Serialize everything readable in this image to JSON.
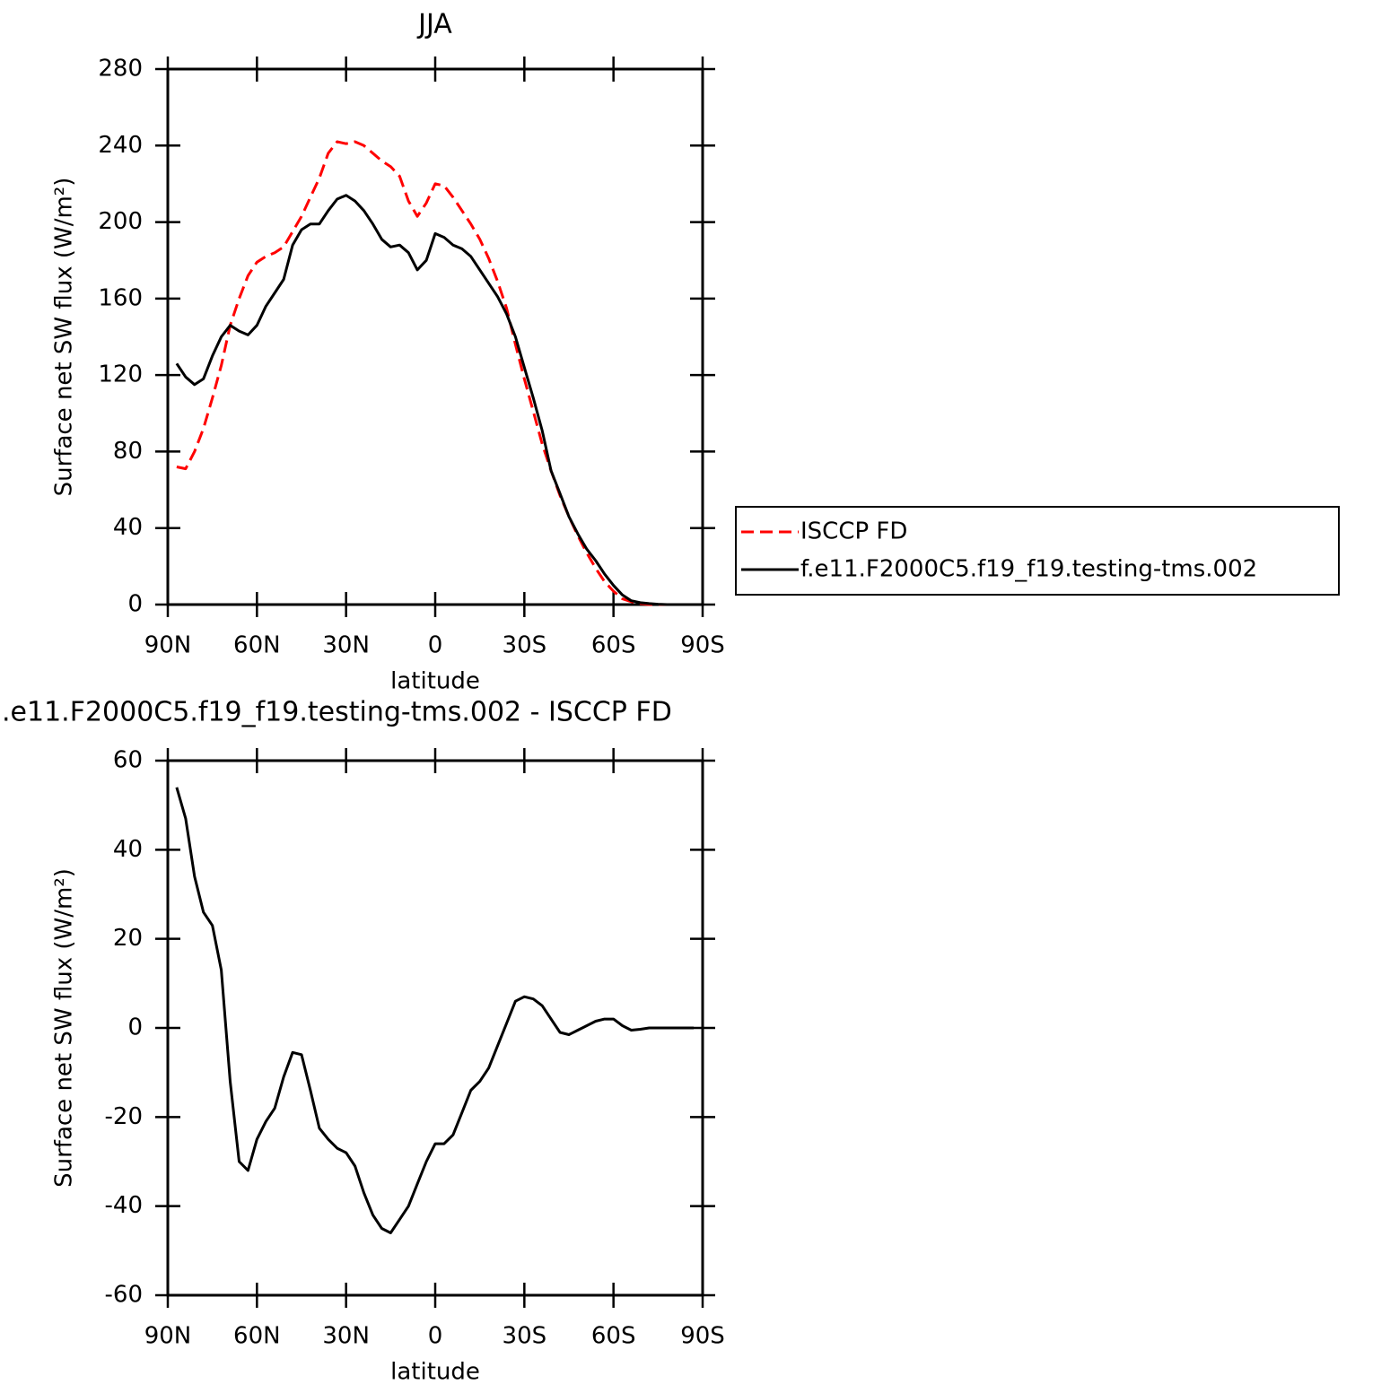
{
  "chart_data": [
    {
      "type": "line",
      "title": "JJA",
      "xlabel": "latitude",
      "ylabel": "Surface net SW flux (W/m²)",
      "x": [
        87,
        84,
        81,
        78,
        75,
        72,
        69,
        66,
        63,
        60,
        57,
        54,
        51,
        48,
        45,
        42,
        39,
        36,
        33,
        30,
        27,
        24,
        21,
        18,
        15,
        12,
        9,
        6,
        3,
        0,
        -3,
        -6,
        -9,
        -12,
        -15,
        -18,
        -21,
        -24,
        -27,
        -30,
        -33,
        -36,
        -39,
        -42,
        -45,
        -48,
        -51,
        -54,
        -57,
        -60,
        -63,
        -66,
        -69,
        -72,
        -75,
        -78,
        -81,
        -84,
        -87
      ],
      "series": [
        {
          "name": "ISCCP FD",
          "color": "#ff0000",
          "dashed": true,
          "values": [
            72,
            71,
            80,
            92,
            108,
            125,
            146,
            160,
            172,
            179,
            182,
            184,
            187,
            195,
            203,
            213,
            223,
            236,
            242,
            241,
            242,
            240,
            236,
            232,
            229,
            224,
            211,
            203,
            210,
            220,
            219,
            213,
            206,
            199,
            191,
            181,
            169,
            155,
            136,
            118,
            101,
            84,
            70,
            57,
            46,
            36,
            27,
            19,
            12,
            7,
            3,
            1.5,
            0.5,
            0,
            0,
            0,
            0,
            0,
            0
          ]
        },
        {
          "name": "f.e11.F2000C5.f19_f19.testing-tms.002",
          "color": "#000000",
          "dashed": false,
          "values": [
            126,
            119,
            115,
            118,
            130,
            140,
            146,
            143,
            141,
            146,
            156,
            163,
            170,
            188,
            196,
            199,
            199,
            206,
            212,
            214,
            211,
            206,
            199,
            191,
            187,
            188,
            184,
            175,
            180,
            194,
            192,
            188,
            186,
            182,
            175,
            168,
            161,
            152,
            140,
            124,
            108,
            91,
            70,
            58,
            46,
            37,
            29,
            23,
            16,
            10,
            5,
            2,
            1,
            0.5,
            0.2,
            0,
            0,
            0,
            0
          ]
        }
      ],
      "xlim": [
        90,
        -90
      ],
      "xticks": [
        {
          "value": 90,
          "label": "90N"
        },
        {
          "value": 60,
          "label": "60N"
        },
        {
          "value": 30,
          "label": "30N"
        },
        0,
        {
          "value": -30,
          "label": "30S"
        },
        {
          "value": -60,
          "label": "60S"
        },
        {
          "value": -90,
          "label": "90S"
        }
      ],
      "ylim": [
        0,
        280
      ],
      "yticks": [
        0,
        40,
        80,
        120,
        160,
        200,
        240,
        280
      ],
      "legend": "right"
    },
    {
      "type": "line",
      "title": ".e11.F2000C5.f19_f19.testing-tms.002 - ISCCP FD",
      "xlabel": "latitude",
      "ylabel": "Surface net SW flux (W/m²)",
      "x": [
        87,
        84,
        81,
        78,
        75,
        72,
        69,
        66,
        63,
        60,
        57,
        54,
        51,
        48,
        45,
        42,
        39,
        36,
        33,
        30,
        27,
        24,
        21,
        18,
        15,
        12,
        9,
        6,
        3,
        0,
        -3,
        -6,
        -9,
        -12,
        -15,
        -18,
        -21,
        -24,
        -27,
        -30,
        -33,
        -36,
        -39,
        -42,
        -45,
        -48,
        -51,
        -54,
        -57,
        -60,
        -63,
        -66,
        -69,
        -72,
        -75,
        -78,
        -81,
        -84,
        -87
      ],
      "color": "#000000",
      "values": [
        54,
        47,
        34,
        26,
        23,
        13,
        -12,
        -30,
        -32,
        -25,
        -21,
        -18,
        -11,
        -5.5,
        -6,
        -14,
        -22.5,
        -25,
        -27,
        -28,
        -31,
        -37,
        -42,
        -45,
        -46,
        -43,
        -40,
        -35,
        -30,
        -26,
        -26,
        -24,
        -19,
        -14,
        -12,
        -9,
        -4,
        1,
        6,
        7,
        6.5,
        5,
        2,
        -1,
        -1.5,
        -0.5,
        0.5,
        1.5,
        2,
        2,
        0.5,
        -0.5,
        -0.3,
        0,
        0,
        0,
        0,
        0,
        0
      ],
      "xlim": [
        90,
        -90
      ],
      "xticks": [
        {
          "value": 90,
          "label": "90N"
        },
        {
          "value": 60,
          "label": "60N"
        },
        {
          "value": 30,
          "label": "30N"
        },
        0,
        {
          "value": -30,
          "label": "30S"
        },
        {
          "value": -60,
          "label": "60S"
        },
        {
          "value": -90,
          "label": "90S"
        }
      ],
      "ylim": [
        -60,
        60
      ],
      "yticks": [
        -60,
        -40,
        -20,
        0,
        20,
        40,
        60
      ]
    }
  ]
}
